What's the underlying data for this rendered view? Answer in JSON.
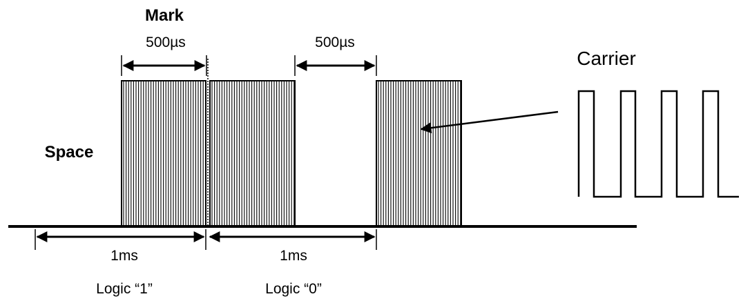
{
  "labels": {
    "mark": "Mark",
    "space": "Space",
    "carrier": "Carrier",
    "mark_duration": "500µs",
    "space_duration": "500µs",
    "bit1_duration": "1ms",
    "bit0_duration": "1ms",
    "logic_one": "Logic “1”",
    "logic_zero": "Logic “0”"
  },
  "colors": {
    "ink": "#000000",
    "background": "#ffffff"
  }
}
